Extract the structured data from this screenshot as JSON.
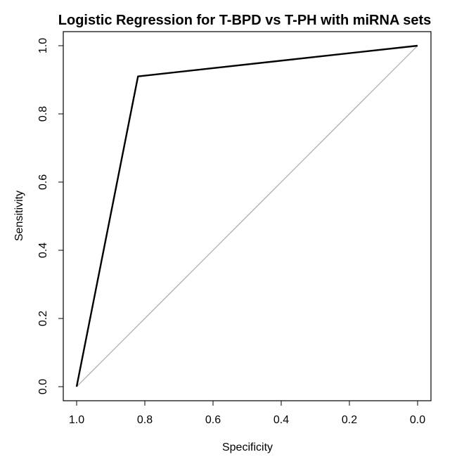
{
  "chart_data": {
    "type": "line",
    "title": "Logistic Regression for T-BPD vs T-PH with miRNA sets",
    "xlabel": "Specificity",
    "ylabel": "Sensitivity",
    "xlim": [
      1.0,
      0.0
    ],
    "ylim": [
      0.0,
      1.0
    ],
    "x_reversed": true,
    "x_ticks": [
      "1.0",
      "0.8",
      "0.6",
      "0.4",
      "0.2",
      "0.0"
    ],
    "y_ticks": [
      "0.0",
      "0.2",
      "0.4",
      "0.6",
      "0.8",
      "1.0"
    ],
    "grid": false,
    "series": [
      {
        "x": [
          1.0,
          0.82,
          0.0
        ],
        "y": [
          0.0,
          0.91,
          1.0
        ],
        "color": "#000000"
      }
    ],
    "reference_line": {
      "x": [
        1.0,
        0.0
      ],
      "y": [
        0.0,
        1.0
      ],
      "color": "#aaaaaa"
    }
  }
}
